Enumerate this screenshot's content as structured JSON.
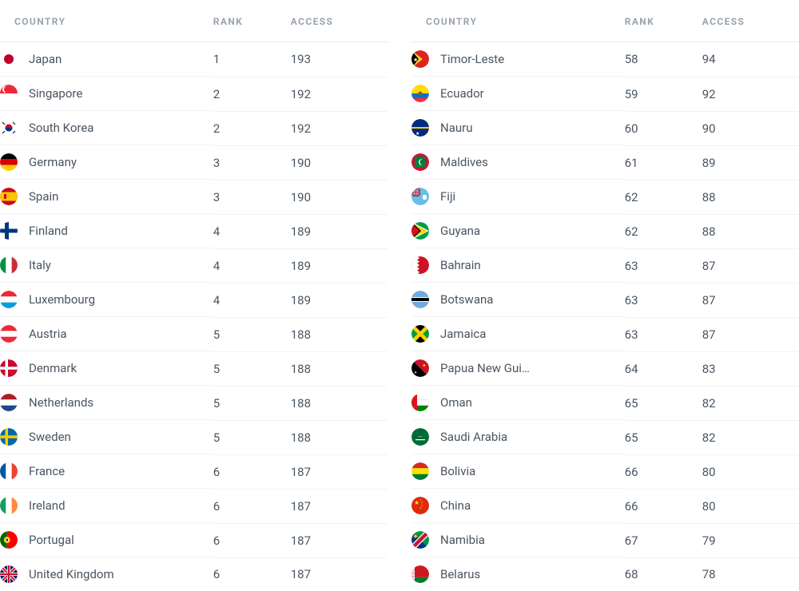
{
  "headers": {
    "country": "COUNTRY",
    "rank": "RANK",
    "access": "ACCESS"
  },
  "palette": {
    "header_text_color": "#9aa3ad",
    "body_text_color": "#4a5561",
    "row_border_color": "#f0f2f4",
    "header_border_color": "#e6e9ec",
    "background_color": "#ffffff"
  },
  "left_rows": [
    {
      "country": "Japan",
      "rank": 1,
      "access": 193,
      "flag": "japan"
    },
    {
      "country": "Singapore",
      "rank": 2,
      "access": 192,
      "flag": "singapore"
    },
    {
      "country": "South Korea",
      "rank": 2,
      "access": 192,
      "flag": "southkorea"
    },
    {
      "country": "Germany",
      "rank": 3,
      "access": 190,
      "flag": "germany"
    },
    {
      "country": "Spain",
      "rank": 3,
      "access": 190,
      "flag": "spain"
    },
    {
      "country": "Finland",
      "rank": 4,
      "access": 189,
      "flag": "finland"
    },
    {
      "country": "Italy",
      "rank": 4,
      "access": 189,
      "flag": "italy"
    },
    {
      "country": "Luxembourg",
      "rank": 4,
      "access": 189,
      "flag": "luxembourg"
    },
    {
      "country": "Austria",
      "rank": 5,
      "access": 188,
      "flag": "austria"
    },
    {
      "country": "Denmark",
      "rank": 5,
      "access": 188,
      "flag": "denmark"
    },
    {
      "country": "Netherlands",
      "rank": 5,
      "access": 188,
      "flag": "netherlands"
    },
    {
      "country": "Sweden",
      "rank": 5,
      "access": 188,
      "flag": "sweden"
    },
    {
      "country": "France",
      "rank": 6,
      "access": 187,
      "flag": "france"
    },
    {
      "country": "Ireland",
      "rank": 6,
      "access": 187,
      "flag": "ireland"
    },
    {
      "country": "Portugal",
      "rank": 6,
      "access": 187,
      "flag": "portugal"
    },
    {
      "country": "United Kingdom",
      "rank": 6,
      "access": 187,
      "flag": "uk"
    }
  ],
  "right_rows": [
    {
      "country": "Timor-Leste",
      "rank": 58,
      "access": 94,
      "flag": "timor"
    },
    {
      "country": "Ecuador",
      "rank": 59,
      "access": 92,
      "flag": "ecuador"
    },
    {
      "country": "Nauru",
      "rank": 60,
      "access": 90,
      "flag": "nauru"
    },
    {
      "country": "Maldives",
      "rank": 61,
      "access": 89,
      "flag": "maldives"
    },
    {
      "country": "Fiji",
      "rank": 62,
      "access": 88,
      "flag": "fiji"
    },
    {
      "country": "Guyana",
      "rank": 62,
      "access": 88,
      "flag": "guyana"
    },
    {
      "country": "Bahrain",
      "rank": 63,
      "access": 87,
      "flag": "bahrain"
    },
    {
      "country": "Botswana",
      "rank": 63,
      "access": 87,
      "flag": "botswana"
    },
    {
      "country": "Jamaica",
      "rank": 63,
      "access": 87,
      "flag": "jamaica"
    },
    {
      "country": "Papua New Gui…",
      "rank": 64,
      "access": 83,
      "flag": "png"
    },
    {
      "country": "Oman",
      "rank": 65,
      "access": 82,
      "flag": "oman"
    },
    {
      "country": "Saudi Arabia",
      "rank": 65,
      "access": 82,
      "flag": "saudi"
    },
    {
      "country": "Bolivia",
      "rank": 66,
      "access": 80,
      "flag": "bolivia"
    },
    {
      "country": "China",
      "rank": 66,
      "access": 80,
      "flag": "china"
    },
    {
      "country": "Namibia",
      "rank": 67,
      "access": 79,
      "flag": "namibia"
    },
    {
      "country": "Belarus",
      "rank": 68,
      "access": 78,
      "flag": "belarus"
    }
  ]
}
